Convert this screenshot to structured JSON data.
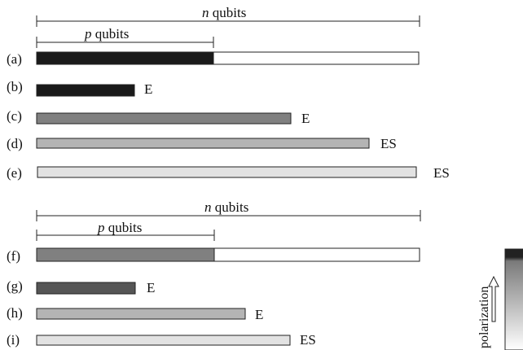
{
  "colors": {
    "black": "#1a1a1a",
    "dark_gray": "#555555",
    "mid_gray": "#808080",
    "light_gray": "#b4b4b4",
    "lighter_gray": "#e2e2e2",
    "white": "#ffffff",
    "outline": "#222222"
  },
  "top_section": {
    "n_label": {
      "var": "n",
      "word": "qubits"
    },
    "p_label": {
      "var": "p",
      "word": "qubits"
    },
    "rows": [
      {
        "label": "(a)",
        "tag": "",
        "fill": "black",
        "split": true
      },
      {
        "label": "(b)",
        "tag": "E",
        "fill": "black"
      },
      {
        "label": "(c)",
        "tag": "E",
        "fill": "mid_gray"
      },
      {
        "label": "(d)",
        "tag": "ES",
        "fill": "light_gray"
      },
      {
        "label": "(e)",
        "tag": "ES",
        "fill": "lighter_gray"
      }
    ]
  },
  "bottom_section": {
    "n_label": {
      "var": "n",
      "word": "qubits"
    },
    "p_label": {
      "var": "p",
      "word": "qubits"
    },
    "rows": [
      {
        "label": "(f)",
        "tag": "",
        "fill": "mid_gray",
        "split": true
      },
      {
        "label": "(g)",
        "tag": "E",
        "fill": "dark_gray"
      },
      {
        "label": "(h)",
        "tag": "E",
        "fill": "light_gray"
      },
      {
        "label": "(i)",
        "tag": "ES",
        "fill": "lighter_gray"
      }
    ]
  },
  "legend": {
    "text": "polarization"
  }
}
